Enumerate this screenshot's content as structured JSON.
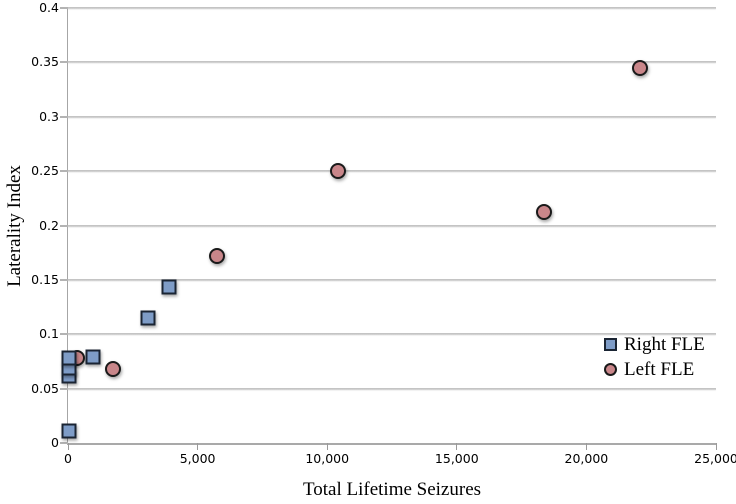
{
  "chart_data": {
    "type": "scatter",
    "title": "",
    "xlabel": "Total Lifetime Seizures",
    "ylabel": "Laterality Index",
    "xlim": [
      0,
      25000
    ],
    "ylim": [
      0,
      0.4
    ],
    "grid": "horizontal",
    "legend_position": "right-middle",
    "background_color": "#ffffff",
    "gridline_color": "#c9c9c9",
    "axis_color": "#a6a6a6",
    "x_ticks": [
      {
        "value": 0,
        "label": "0"
      },
      {
        "value": 5000,
        "label": "5,000"
      },
      {
        "value": 10000,
        "label": "10,000"
      },
      {
        "value": 15000,
        "label": "15,000"
      },
      {
        "value": 20000,
        "label": "20,000"
      },
      {
        "value": 25000,
        "label": "25,000"
      }
    ],
    "y_ticks": [
      {
        "value": 0,
        "label": "0"
      },
      {
        "value": 0.05,
        "label": "0.05"
      },
      {
        "value": 0.1,
        "label": "0.1"
      },
      {
        "value": 0.15,
        "label": "0.15"
      },
      {
        "value": 0.2,
        "label": "0.2"
      },
      {
        "value": 0.25,
        "label": "0.25"
      },
      {
        "value": 0.3,
        "label": "0.3"
      },
      {
        "value": 0.35,
        "label": "0.35"
      },
      {
        "value": 0.4,
        "label": "0.4"
      }
    ],
    "series": [
      {
        "name": "Right FLE",
        "marker": "square",
        "fill_color": "#7e9cc7",
        "border_color": "#1a2433",
        "points": [
          {
            "x": 30,
            "y": 0.011
          },
          {
            "x": 30,
            "y": 0.062
          },
          {
            "x": 30,
            "y": 0.069
          },
          {
            "x": 30,
            "y": 0.078
          },
          {
            "x": 950,
            "y": 0.079
          },
          {
            "x": 3100,
            "y": 0.115
          },
          {
            "x": 3900,
            "y": 0.143
          }
        ]
      },
      {
        "name": "Left FLE",
        "marker": "circle",
        "fill_color": "#c9868a",
        "border_color": "#1a1a1a",
        "points": [
          {
            "x": 350,
            "y": 0.078
          },
          {
            "x": 1750,
            "y": 0.068
          },
          {
            "x": 5750,
            "y": 0.172
          },
          {
            "x": 10400,
            "y": 0.25
          },
          {
            "x": 18350,
            "y": 0.212
          },
          {
            "x": 22050,
            "y": 0.345
          }
        ]
      }
    ]
  }
}
